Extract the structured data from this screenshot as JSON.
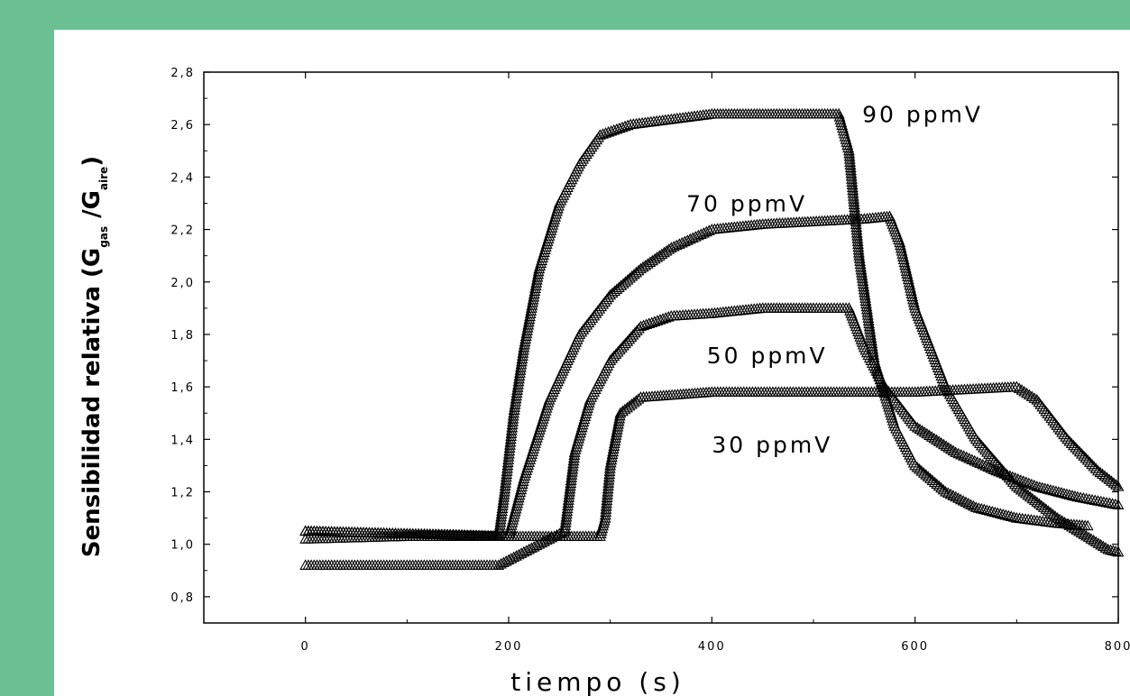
{
  "chart_data": {
    "type": "scatter",
    "title": "",
    "xlabel": "tiempo (s)",
    "ylabel": {
      "prefix": "Sensibilidad relativa (",
      "g1": "G",
      "sub1": "gas",
      "slash": " /",
      "g2": "G",
      "sub2": "aire",
      "suffix": ")"
    },
    "xlim": [
      -100,
      800
    ],
    "ylim": [
      0.7,
      2.8
    ],
    "x_ticks": [
      {
        "v": 0,
        "label": "0"
      },
      {
        "v": 200,
        "label": "200"
      },
      {
        "v": 400,
        "label": "400"
      },
      {
        "v": 600,
        "label": "600"
      },
      {
        "v": 800,
        "label": "800"
      }
    ],
    "y_ticks": [
      {
        "v": 0.8,
        "label": "0,8"
      },
      {
        "v": 1.0,
        "label": "1,0"
      },
      {
        "v": 1.2,
        "label": "1,2"
      },
      {
        "v": 1.4,
        "label": "1,4"
      },
      {
        "v": 1.6,
        "label": "1,6"
      },
      {
        "v": 1.8,
        "label": "1,8"
      },
      {
        "v": 2.0,
        "label": "2,0"
      },
      {
        "v": 2.2,
        "label": "2,2"
      },
      {
        "v": 2.4,
        "label": "2,4"
      },
      {
        "v": 2.6,
        "label": "2,6"
      },
      {
        "v": 2.8,
        "label": "2,8"
      }
    ],
    "marker": "triangle-open",
    "series": [
      {
        "name": "90 ppmV",
        "points": [
          [
            0,
            1.05
          ],
          [
            100,
            1.04
          ],
          [
            190,
            1.03
          ],
          [
            196,
            1.2
          ],
          [
            205,
            1.5
          ],
          [
            215,
            1.75
          ],
          [
            230,
            2.05
          ],
          [
            250,
            2.3
          ],
          [
            270,
            2.45
          ],
          [
            290,
            2.56
          ],
          [
            320,
            2.6
          ],
          [
            360,
            2.62
          ],
          [
            400,
            2.64
          ],
          [
            450,
            2.64
          ],
          [
            500,
            2.64
          ],
          [
            525,
            2.64
          ],
          [
            535,
            2.5
          ],
          [
            545,
            2.1
          ],
          [
            560,
            1.7
          ],
          [
            580,
            1.45
          ],
          [
            600,
            1.3
          ],
          [
            630,
            1.2
          ],
          [
            660,
            1.14
          ],
          [
            700,
            1.1
          ],
          [
            740,
            1.08
          ],
          [
            770,
            1.07
          ]
        ]
      },
      {
        "name": "70 ppmV",
        "points": [
          [
            0,
            1.05
          ],
          [
            100,
            1.04
          ],
          [
            200,
            1.03
          ],
          [
            215,
            1.25
          ],
          [
            240,
            1.55
          ],
          [
            270,
            1.8
          ],
          [
            300,
            1.95
          ],
          [
            330,
            2.05
          ],
          [
            360,
            2.13
          ],
          [
            400,
            2.2
          ],
          [
            450,
            2.22
          ],
          [
            500,
            2.23
          ],
          [
            550,
            2.24
          ],
          [
            575,
            2.25
          ],
          [
            585,
            2.15
          ],
          [
            600,
            1.9
          ],
          [
            630,
            1.6
          ],
          [
            660,
            1.4
          ],
          [
            700,
            1.22
          ],
          [
            740,
            1.1
          ],
          [
            790,
            0.98
          ],
          [
            800,
            0.97
          ]
        ]
      },
      {
        "name": "50 ppmV",
        "points": [
          [
            0,
            0.92
          ],
          [
            100,
            0.92
          ],
          [
            190,
            0.92
          ],
          [
            255,
            1.05
          ],
          [
            265,
            1.35
          ],
          [
            280,
            1.55
          ],
          [
            300,
            1.7
          ],
          [
            330,
            1.83
          ],
          [
            360,
            1.87
          ],
          [
            400,
            1.88
          ],
          [
            450,
            1.9
          ],
          [
            500,
            1.9
          ],
          [
            535,
            1.9
          ],
          [
            550,
            1.75
          ],
          [
            570,
            1.6
          ],
          [
            600,
            1.45
          ],
          [
            640,
            1.35
          ],
          [
            680,
            1.28
          ],
          [
            720,
            1.22
          ],
          [
            760,
            1.18
          ],
          [
            800,
            1.15
          ]
        ]
      },
      {
        "name": "30 ppmV",
        "points": [
          [
            0,
            1.02
          ],
          [
            100,
            1.03
          ],
          [
            200,
            1.03
          ],
          [
            290,
            1.03
          ],
          [
            295,
            1.1
          ],
          [
            300,
            1.3
          ],
          [
            310,
            1.5
          ],
          [
            330,
            1.56
          ],
          [
            400,
            1.58
          ],
          [
            500,
            1.58
          ],
          [
            600,
            1.58
          ],
          [
            700,
            1.6
          ],
          [
            720,
            1.55
          ],
          [
            750,
            1.4
          ],
          [
            780,
            1.28
          ],
          [
            800,
            1.22
          ]
        ]
      }
    ],
    "annotations": [
      {
        "text": "90 ppmV",
        "x": 548,
        "y": 2.64
      },
      {
        "text": "70 ppmV",
        "x": 375,
        "y": 2.3
      },
      {
        "text": "50 ppmV",
        "x": 395,
        "y": 1.72
      },
      {
        "text": "30 ppmV",
        "x": 400,
        "y": 1.38
      }
    ]
  }
}
